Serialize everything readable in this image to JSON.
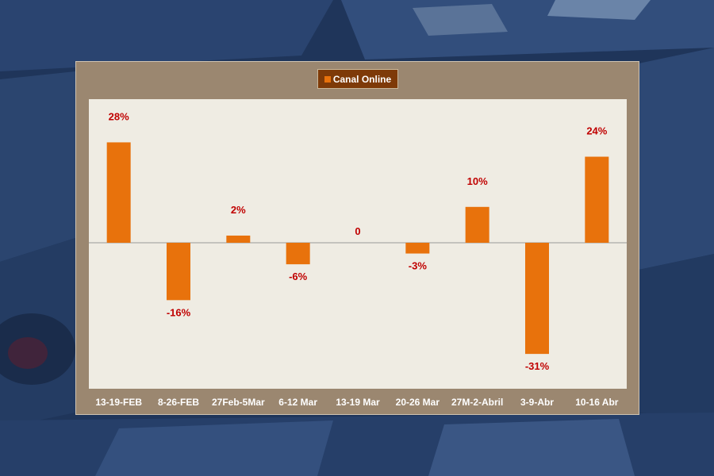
{
  "legend": {
    "label": "Canal Online",
    "color": "#e8720c"
  },
  "colors": {
    "bar": "#e8720c",
    "data_label": "#c00000",
    "plot_bg": "#efece3",
    "panel_bg": "#9b8770"
  },
  "chart_data": {
    "type": "bar",
    "categories": [
      "13-19-FEB",
      "8-26-FEB",
      "27Feb-5Mar",
      "6-12 Mar",
      "13-19 Mar",
      "20-26 Mar",
      "27M-2-Abril",
      "3-9-Abr",
      "10-16 Abr"
    ],
    "series": [
      {
        "name": "Canal Online",
        "values": [
          28,
          -16,
          2,
          -6,
          0,
          -3,
          10,
          -31,
          24
        ]
      }
    ],
    "data_labels": [
      "28%",
      "-16%",
      "2%",
      "-6%",
      "0",
      "-3%",
      "10%",
      "-31%",
      "24%"
    ],
    "ylim": [
      -40,
      40
    ],
    "grid": false,
    "legend_position": "top-center"
  }
}
